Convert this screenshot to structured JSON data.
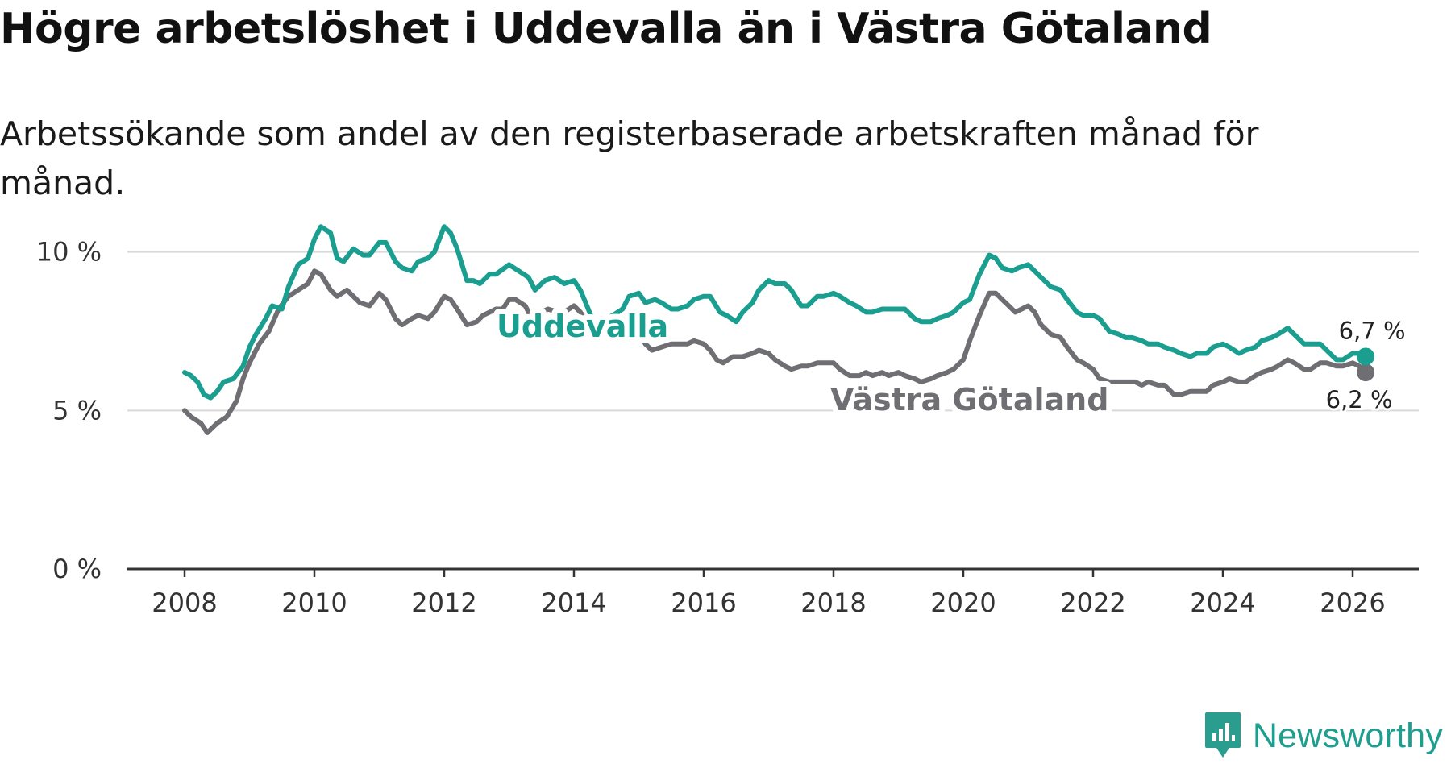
{
  "title": "Högre arbetslöshet i Uddevalla än i Västra Götaland",
  "subtitle": "Arbetssökande som andel av den registerbaserade arbetskraften månad för månad.",
  "brand": {
    "name": "Newsworthy",
    "icon": "newsworthy-logo-icon",
    "color": "#2a9d8f"
  },
  "chart_data": {
    "type": "line",
    "title": "Högre arbetslöshet i Uddevalla än i Västra Götaland",
    "subtitle": "Arbetssökande som andel av den registerbaserade arbetskraften månad för månad.",
    "xlabel": "",
    "ylabel": "",
    "xlim": [
      2007.4,
      2027.2
    ],
    "ylim": [
      0,
      12
    ],
    "grid": true,
    "x_ticks": [
      2008,
      2010,
      2012,
      2014,
      2016,
      2018,
      2020,
      2022,
      2024,
      2026
    ],
    "x_tick_labels": [
      "2008",
      "2010",
      "2012",
      "2014",
      "2016",
      "2018",
      "2020",
      "2022",
      "2024",
      "2026"
    ],
    "y_ticks": [
      0,
      5,
      10
    ],
    "y_tick_labels": [
      "0 %",
      "5 %",
      "10 %"
    ],
    "series": [
      {
        "name": "Västra Götaland",
        "label": "Västra Götaland",
        "color": "#6e6e73",
        "end_label": "6,2 %",
        "points": [
          [
            2008.0,
            5.0
          ],
          [
            2008.1,
            4.8
          ],
          [
            2008.25,
            4.6
          ],
          [
            2008.35,
            4.3
          ],
          [
            2008.5,
            4.6
          ],
          [
            2008.65,
            4.8
          ],
          [
            2008.8,
            5.3
          ],
          [
            2008.9,
            6.0
          ],
          [
            2009.0,
            6.5
          ],
          [
            2009.15,
            7.1
          ],
          [
            2009.3,
            7.5
          ],
          [
            2009.45,
            8.2
          ],
          [
            2009.6,
            8.6
          ],
          [
            2009.75,
            8.8
          ],
          [
            2009.9,
            9.0
          ],
          [
            2010.0,
            9.4
          ],
          [
            2010.1,
            9.3
          ],
          [
            2010.25,
            8.8
          ],
          [
            2010.35,
            8.6
          ],
          [
            2010.5,
            8.8
          ],
          [
            2010.6,
            8.6
          ],
          [
            2010.7,
            8.4
          ],
          [
            2010.85,
            8.3
          ],
          [
            2011.0,
            8.7
          ],
          [
            2011.1,
            8.5
          ],
          [
            2011.25,
            7.9
          ],
          [
            2011.35,
            7.7
          ],
          [
            2011.5,
            7.9
          ],
          [
            2011.6,
            8.0
          ],
          [
            2011.75,
            7.9
          ],
          [
            2011.85,
            8.1
          ],
          [
            2012.0,
            8.6
          ],
          [
            2012.1,
            8.5
          ],
          [
            2012.2,
            8.2
          ],
          [
            2012.35,
            7.7
          ],
          [
            2012.5,
            7.8
          ],
          [
            2012.6,
            8.0
          ],
          [
            2012.7,
            8.1
          ],
          [
            2012.8,
            8.2
          ],
          [
            2012.9,
            8.2
          ],
          [
            2013.0,
            8.5
          ],
          [
            2013.1,
            8.5
          ],
          [
            2013.25,
            8.3
          ],
          [
            2013.35,
            7.9
          ],
          [
            2013.5,
            8.1
          ],
          [
            2013.6,
            8.2
          ],
          [
            2013.75,
            8.1
          ],
          [
            2013.85,
            8.1
          ],
          [
            2014.0,
            8.3
          ],
          [
            2014.1,
            8.1
          ],
          [
            2014.2,
            7.8
          ],
          [
            2014.3,
            7.3
          ],
          [
            2014.4,
            7.3
          ],
          [
            2014.5,
            7.4
          ],
          [
            2014.6,
            7.4
          ],
          [
            2014.75,
            7.4
          ],
          [
            2014.85,
            7.6
          ],
          [
            2015.0,
            7.5
          ],
          [
            2015.1,
            7.1
          ],
          [
            2015.2,
            6.9
          ],
          [
            2015.35,
            7.0
          ],
          [
            2015.5,
            7.1
          ],
          [
            2015.6,
            7.1
          ],
          [
            2015.75,
            7.1
          ],
          [
            2015.85,
            7.2
          ],
          [
            2016.0,
            7.1
          ],
          [
            2016.1,
            6.9
          ],
          [
            2016.2,
            6.6
          ],
          [
            2016.3,
            6.5
          ],
          [
            2016.45,
            6.7
          ],
          [
            2016.6,
            6.7
          ],
          [
            2016.75,
            6.8
          ],
          [
            2016.85,
            6.9
          ],
          [
            2017.0,
            6.8
          ],
          [
            2017.1,
            6.6
          ],
          [
            2017.25,
            6.4
          ],
          [
            2017.35,
            6.3
          ],
          [
            2017.5,
            6.4
          ],
          [
            2017.6,
            6.4
          ],
          [
            2017.75,
            6.5
          ],
          [
            2017.85,
            6.5
          ],
          [
            2018.0,
            6.5
          ],
          [
            2018.1,
            6.3
          ],
          [
            2018.25,
            6.1
          ],
          [
            2018.4,
            6.1
          ],
          [
            2018.5,
            6.2
          ],
          [
            2018.6,
            6.1
          ],
          [
            2018.75,
            6.2
          ],
          [
            2018.85,
            6.1
          ],
          [
            2019.0,
            6.2
          ],
          [
            2019.1,
            6.1
          ],
          [
            2019.25,
            6.0
          ],
          [
            2019.35,
            5.9
          ],
          [
            2019.5,
            6.0
          ],
          [
            2019.6,
            6.1
          ],
          [
            2019.75,
            6.2
          ],
          [
            2019.85,
            6.3
          ],
          [
            2020.0,
            6.6
          ],
          [
            2020.1,
            7.2
          ],
          [
            2020.25,
            8.0
          ],
          [
            2020.4,
            8.7
          ],
          [
            2020.5,
            8.7
          ],
          [
            2020.6,
            8.5
          ],
          [
            2020.7,
            8.3
          ],
          [
            2020.8,
            8.1
          ],
          [
            2020.9,
            8.2
          ],
          [
            2021.0,
            8.3
          ],
          [
            2021.1,
            8.1
          ],
          [
            2021.2,
            7.7
          ],
          [
            2021.35,
            7.4
          ],
          [
            2021.5,
            7.3
          ],
          [
            2021.6,
            7.0
          ],
          [
            2021.75,
            6.6
          ],
          [
            2021.85,
            6.5
          ],
          [
            2022.0,
            6.3
          ],
          [
            2022.1,
            6.0
          ],
          [
            2022.25,
            5.9
          ],
          [
            2022.5,
            5.9
          ],
          [
            2022.65,
            5.9
          ],
          [
            2022.75,
            5.8
          ],
          [
            2022.85,
            5.9
          ],
          [
            2023.0,
            5.8
          ],
          [
            2023.1,
            5.8
          ],
          [
            2023.25,
            5.5
          ],
          [
            2023.35,
            5.5
          ],
          [
            2023.5,
            5.6
          ],
          [
            2023.6,
            5.6
          ],
          [
            2023.75,
            5.6
          ],
          [
            2023.85,
            5.8
          ],
          [
            2024.0,
            5.9
          ],
          [
            2024.1,
            6.0
          ],
          [
            2024.25,
            5.9
          ],
          [
            2024.35,
            5.9
          ],
          [
            2024.5,
            6.1
          ],
          [
            2024.6,
            6.2
          ],
          [
            2024.75,
            6.3
          ],
          [
            2024.85,
            6.4
          ],
          [
            2025.0,
            6.6
          ],
          [
            2025.1,
            6.5
          ],
          [
            2025.25,
            6.3
          ],
          [
            2025.35,
            6.3
          ],
          [
            2025.5,
            6.5
          ],
          [
            2025.6,
            6.5
          ],
          [
            2025.75,
            6.4
          ],
          [
            2025.85,
            6.4
          ],
          [
            2026.0,
            6.5
          ],
          [
            2026.1,
            6.4
          ],
          [
            2026.2,
            6.2
          ]
        ]
      },
      {
        "name": "Uddevalla",
        "label": "Uddevalla",
        "color": "#1a9e90",
        "end_label": "6,7 %",
        "points": [
          [
            2008.0,
            6.2
          ],
          [
            2008.1,
            6.1
          ],
          [
            2008.2,
            5.9
          ],
          [
            2008.3,
            5.5
          ],
          [
            2008.4,
            5.4
          ],
          [
            2008.5,
            5.6
          ],
          [
            2008.6,
            5.9
          ],
          [
            2008.75,
            6.0
          ],
          [
            2008.9,
            6.4
          ],
          [
            2009.0,
            7.0
          ],
          [
            2009.1,
            7.4
          ],
          [
            2009.25,
            7.9
          ],
          [
            2009.35,
            8.3
          ],
          [
            2009.5,
            8.2
          ],
          [
            2009.6,
            8.9
          ],
          [
            2009.75,
            9.6
          ],
          [
            2009.9,
            9.8
          ],
          [
            2010.0,
            10.4
          ],
          [
            2010.1,
            10.8
          ],
          [
            2010.25,
            10.6
          ],
          [
            2010.35,
            9.8
          ],
          [
            2010.45,
            9.7
          ],
          [
            2010.6,
            10.1
          ],
          [
            2010.75,
            9.9
          ],
          [
            2010.85,
            9.9
          ],
          [
            2011.0,
            10.3
          ],
          [
            2011.1,
            10.3
          ],
          [
            2011.25,
            9.7
          ],
          [
            2011.35,
            9.5
          ],
          [
            2011.5,
            9.4
          ],
          [
            2011.6,
            9.7
          ],
          [
            2011.75,
            9.8
          ],
          [
            2011.85,
            10.0
          ],
          [
            2012.0,
            10.8
          ],
          [
            2012.1,
            10.6
          ],
          [
            2012.2,
            10.1
          ],
          [
            2012.35,
            9.1
          ],
          [
            2012.45,
            9.1
          ],
          [
            2012.55,
            9.0
          ],
          [
            2012.7,
            9.3
          ],
          [
            2012.8,
            9.3
          ],
          [
            2013.0,
            9.6
          ],
          [
            2013.15,
            9.4
          ],
          [
            2013.3,
            9.2
          ],
          [
            2013.4,
            8.8
          ],
          [
            2013.55,
            9.1
          ],
          [
            2013.7,
            9.2
          ],
          [
            2013.85,
            9.0
          ],
          [
            2014.0,
            9.1
          ],
          [
            2014.1,
            8.8
          ],
          [
            2014.2,
            8.3
          ],
          [
            2014.3,
            7.8
          ],
          [
            2014.4,
            7.6
          ],
          [
            2014.5,
            7.9
          ],
          [
            2014.6,
            8.0
          ],
          [
            2014.75,
            8.2
          ],
          [
            2014.85,
            8.6
          ],
          [
            2015.0,
            8.7
          ],
          [
            2015.1,
            8.4
          ],
          [
            2015.25,
            8.5
          ],
          [
            2015.35,
            8.4
          ],
          [
            2015.5,
            8.2
          ],
          [
            2015.6,
            8.2
          ],
          [
            2015.75,
            8.3
          ],
          [
            2015.85,
            8.5
          ],
          [
            2016.0,
            8.6
          ],
          [
            2016.1,
            8.6
          ],
          [
            2016.25,
            8.1
          ],
          [
            2016.35,
            8.0
          ],
          [
            2016.5,
            7.8
          ],
          [
            2016.6,
            8.1
          ],
          [
            2016.75,
            8.4
          ],
          [
            2016.85,
            8.8
          ],
          [
            2017.0,
            9.1
          ],
          [
            2017.1,
            9.0
          ],
          [
            2017.25,
            9.0
          ],
          [
            2017.35,
            8.8
          ],
          [
            2017.5,
            8.3
          ],
          [
            2017.6,
            8.3
          ],
          [
            2017.75,
            8.6
          ],
          [
            2017.85,
            8.6
          ],
          [
            2018.0,
            8.7
          ],
          [
            2018.1,
            8.6
          ],
          [
            2018.25,
            8.4
          ],
          [
            2018.35,
            8.3
          ],
          [
            2018.5,
            8.1
          ],
          [
            2018.6,
            8.1
          ],
          [
            2018.75,
            8.2
          ],
          [
            2018.85,
            8.2
          ],
          [
            2019.0,
            8.2
          ],
          [
            2019.1,
            8.2
          ],
          [
            2019.25,
            7.9
          ],
          [
            2019.35,
            7.8
          ],
          [
            2019.5,
            7.8
          ],
          [
            2019.6,
            7.9
          ],
          [
            2019.75,
            8.0
          ],
          [
            2019.85,
            8.1
          ],
          [
            2020.0,
            8.4
          ],
          [
            2020.1,
            8.5
          ],
          [
            2020.25,
            9.3
          ],
          [
            2020.4,
            9.9
          ],
          [
            2020.5,
            9.8
          ],
          [
            2020.6,
            9.5
          ],
          [
            2020.75,
            9.4
          ],
          [
            2020.85,
            9.5
          ],
          [
            2021.0,
            9.6
          ],
          [
            2021.1,
            9.4
          ],
          [
            2021.25,
            9.1
          ],
          [
            2021.35,
            8.9
          ],
          [
            2021.5,
            8.8
          ],
          [
            2021.6,
            8.5
          ],
          [
            2021.75,
            8.1
          ],
          [
            2021.85,
            8.0
          ],
          [
            2022.0,
            8.0
          ],
          [
            2022.1,
            7.9
          ],
          [
            2022.25,
            7.5
          ],
          [
            2022.4,
            7.4
          ],
          [
            2022.5,
            7.3
          ],
          [
            2022.6,
            7.3
          ],
          [
            2022.75,
            7.2
          ],
          [
            2022.85,
            7.1
          ],
          [
            2023.0,
            7.1
          ],
          [
            2023.1,
            7.0
          ],
          [
            2023.25,
            6.9
          ],
          [
            2023.35,
            6.8
          ],
          [
            2023.5,
            6.7
          ],
          [
            2023.6,
            6.8
          ],
          [
            2023.75,
            6.8
          ],
          [
            2023.85,
            7.0
          ],
          [
            2024.0,
            7.1
          ],
          [
            2024.1,
            7.0
          ],
          [
            2024.25,
            6.8
          ],
          [
            2024.35,
            6.9
          ],
          [
            2024.5,
            7.0
          ],
          [
            2024.6,
            7.2
          ],
          [
            2024.75,
            7.3
          ],
          [
            2024.85,
            7.4
          ],
          [
            2025.0,
            7.6
          ],
          [
            2025.1,
            7.4
          ],
          [
            2025.25,
            7.1
          ],
          [
            2025.35,
            7.1
          ],
          [
            2025.5,
            7.1
          ],
          [
            2025.6,
            6.9
          ],
          [
            2025.75,
            6.6
          ],
          [
            2025.85,
            6.6
          ],
          [
            2026.0,
            6.8
          ],
          [
            2026.1,
            6.8
          ],
          [
            2026.2,
            6.7
          ]
        ]
      }
    ]
  }
}
